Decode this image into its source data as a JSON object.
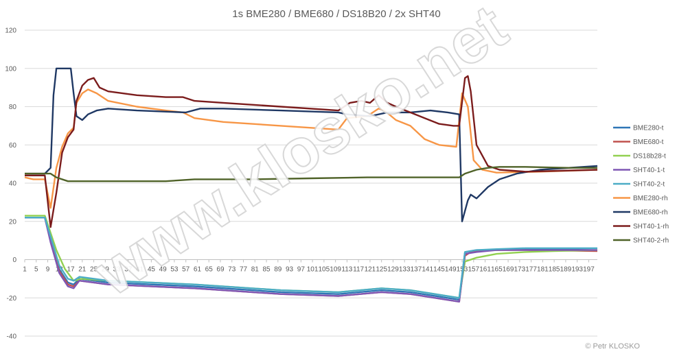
{
  "chart_data": {
    "type": "line",
    "title": "1s BME280 / BME680 / DS18B20 / 2x SHT40",
    "xlabel": "",
    "ylabel": "",
    "x_range": [
      1,
      200
    ],
    "x_tick_labels": [
      "1",
      "5",
      "9",
      "13",
      "17",
      "21",
      "25",
      "29",
      "33",
      "37",
      "41",
      "45",
      "49",
      "53",
      "57",
      "61",
      "65",
      "69",
      "73",
      "77",
      "81",
      "85",
      "89",
      "93",
      "97",
      "101",
      "105",
      "109",
      "113",
      "117",
      "121",
      "125",
      "129",
      "133",
      "137",
      "141",
      "145",
      "149",
      "153",
      "157",
      "161",
      "165",
      "169",
      "173",
      "177",
      "181",
      "185",
      "189",
      "193",
      "197"
    ],
    "y_ticks": [
      "-40",
      "-20",
      "0",
      "20",
      "40",
      "60",
      "80",
      "100",
      "120"
    ],
    "ylim": [
      -40,
      120
    ],
    "grid": true,
    "legend_position": "right",
    "series": [
      {
        "name": "BME280-t",
        "color": "#2e75b6",
        "points": [
          [
            1,
            22
          ],
          [
            8,
            22
          ],
          [
            10,
            10
          ],
          [
            13,
            -5
          ],
          [
            16,
            -12
          ],
          [
            18,
            -13
          ],
          [
            20,
            -10
          ],
          [
            30,
            -12
          ],
          [
            60,
            -14
          ],
          [
            90,
            -17
          ],
          [
            110,
            -18
          ],
          [
            125,
            -16
          ],
          [
            135,
            -17
          ],
          [
            152,
            -21
          ],
          [
            154,
            4
          ],
          [
            158,
            5
          ],
          [
            165,
            5
          ],
          [
            175,
            5.5
          ],
          [
            200,
            5
          ]
        ]
      },
      {
        "name": "BME680-t",
        "color": "#c0504d",
        "points": [
          [
            1,
            22
          ],
          [
            8,
            22
          ],
          [
            10,
            10
          ],
          [
            13,
            -6
          ],
          [
            16,
            -13
          ],
          [
            18,
            -14
          ],
          [
            20,
            -11
          ],
          [
            30,
            -13
          ],
          [
            60,
            -15
          ],
          [
            90,
            -18
          ],
          [
            110,
            -19
          ],
          [
            125,
            -17
          ],
          [
            135,
            -18
          ],
          [
            152,
            -22
          ],
          [
            154,
            2
          ],
          [
            156,
            4
          ],
          [
            162,
            5
          ],
          [
            175,
            5
          ],
          [
            200,
            4.5
          ]
        ]
      },
      {
        "name": "DS18b28-t",
        "color": "#92d050",
        "points": [
          [
            1,
            23
          ],
          [
            8,
            23
          ],
          [
            10,
            14
          ],
          [
            12,
            5
          ],
          [
            15,
            -5
          ],
          [
            18,
            -11
          ],
          [
            21,
            -10
          ],
          [
            30,
            -11
          ],
          [
            60,
            -13
          ],
          [
            90,
            -16
          ],
          [
            110,
            -17
          ],
          [
            125,
            -15
          ],
          [
            135,
            -16
          ],
          [
            152,
            -20
          ],
          [
            154,
            -1
          ],
          [
            158,
            1
          ],
          [
            165,
            3
          ],
          [
            175,
            4
          ],
          [
            185,
            4.5
          ],
          [
            200,
            5
          ]
        ]
      },
      {
        "name": "SHT40-1-t",
        "color": "#7f57b4",
        "points": [
          [
            1,
            22
          ],
          [
            8,
            22
          ],
          [
            10,
            9
          ],
          [
            13,
            -7
          ],
          [
            16,
            -14
          ],
          [
            18,
            -15
          ],
          [
            20,
            -11
          ],
          [
            30,
            -13
          ],
          [
            60,
            -15
          ],
          [
            90,
            -18
          ],
          [
            110,
            -19
          ],
          [
            125,
            -17
          ],
          [
            135,
            -18
          ],
          [
            152,
            -22
          ],
          [
            154,
            3
          ],
          [
            158,
            4
          ],
          [
            165,
            5
          ],
          [
            175,
            5
          ],
          [
            200,
            5
          ]
        ]
      },
      {
        "name": "SHT40-2-t",
        "color": "#4bacc6",
        "points": [
          [
            1,
            22
          ],
          [
            8,
            22
          ],
          [
            10,
            12
          ],
          [
            13,
            -3
          ],
          [
            16,
            -10
          ],
          [
            18,
            -11
          ],
          [
            20,
            -9
          ],
          [
            30,
            -11
          ],
          [
            60,
            -13
          ],
          [
            90,
            -16
          ],
          [
            110,
            -17
          ],
          [
            125,
            -15
          ],
          [
            135,
            -16
          ],
          [
            152,
            -20
          ],
          [
            154,
            4
          ],
          [
            158,
            5
          ],
          [
            165,
            5.5
          ],
          [
            175,
            6
          ],
          [
            200,
            6
          ]
        ]
      },
      {
        "name": "BME280-rh",
        "color": "#f79646",
        "points": [
          [
            1,
            43
          ],
          [
            4,
            42
          ],
          [
            8,
            42
          ],
          [
            10,
            27
          ],
          [
            12,
            48
          ],
          [
            14,
            59
          ],
          [
            16,
            66
          ],
          [
            18,
            69
          ],
          [
            19,
            82
          ],
          [
            21,
            87
          ],
          [
            23,
            89
          ],
          [
            26,
            87
          ],
          [
            30,
            83
          ],
          [
            40,
            80
          ],
          [
            50,
            78
          ],
          [
            56,
            77
          ],
          [
            60,
            74
          ],
          [
            70,
            72
          ],
          [
            90,
            70
          ],
          [
            110,
            68
          ],
          [
            113,
            74
          ],
          [
            120,
            75
          ],
          [
            124,
            79
          ],
          [
            126,
            78
          ],
          [
            130,
            73
          ],
          [
            135,
            70
          ],
          [
            140,
            63
          ],
          [
            145,
            60
          ],
          [
            151,
            59
          ],
          [
            153,
            87
          ],
          [
            155,
            80
          ],
          [
            157,
            52
          ],
          [
            160,
            47
          ],
          [
            165,
            45.5
          ],
          [
            180,
            46
          ],
          [
            200,
            47
          ]
        ]
      },
      {
        "name": "BME680-rh",
        "color": "#1f3864",
        "points": [
          [
            1,
            45
          ],
          [
            8,
            45
          ],
          [
            10,
            48
          ],
          [
            11,
            86
          ],
          [
            12,
            100
          ],
          [
            17,
            100
          ],
          [
            18,
            87
          ],
          [
            19,
            75
          ],
          [
            21,
            73
          ],
          [
            23,
            76
          ],
          [
            26,
            78
          ],
          [
            30,
            79
          ],
          [
            40,
            78
          ],
          [
            57,
            77
          ],
          [
            62,
            79
          ],
          [
            70,
            79
          ],
          [
            90,
            78
          ],
          [
            110,
            77
          ],
          [
            113,
            76
          ],
          [
            121,
            75
          ],
          [
            127,
            77
          ],
          [
            135,
            77
          ],
          [
            142,
            78
          ],
          [
            148,
            77
          ],
          [
            152,
            76
          ],
          [
            153,
            20
          ],
          [
            155,
            31
          ],
          [
            156,
            34
          ],
          [
            158,
            32
          ],
          [
            162,
            38
          ],
          [
            166,
            42
          ],
          [
            172,
            45
          ],
          [
            180,
            47
          ],
          [
            200,
            49
          ]
        ]
      },
      {
        "name": "SHT40-1-rh",
        "color": "#7b1c1c",
        "points": [
          [
            1,
            44
          ],
          [
            8,
            44
          ],
          [
            10,
            17
          ],
          [
            12,
            35
          ],
          [
            14,
            56
          ],
          [
            16,
            64
          ],
          [
            18,
            68
          ],
          [
            19,
            83
          ],
          [
            21,
            91
          ],
          [
            23,
            94
          ],
          [
            25,
            95
          ],
          [
            27,
            90
          ],
          [
            30,
            88
          ],
          [
            40,
            86
          ],
          [
            50,
            85
          ],
          [
            56,
            85
          ],
          [
            60,
            83
          ],
          [
            70,
            82
          ],
          [
            90,
            80
          ],
          [
            110,
            78
          ],
          [
            114,
            82
          ],
          [
            118,
            83
          ],
          [
            121,
            82
          ],
          [
            124,
            86
          ],
          [
            127,
            82
          ],
          [
            130,
            80
          ],
          [
            135,
            77
          ],
          [
            140,
            74
          ],
          [
            145,
            71
          ],
          [
            150,
            70
          ],
          [
            152,
            70
          ],
          [
            154,
            95
          ],
          [
            155,
            96
          ],
          [
            156,
            88
          ],
          [
            158,
            60
          ],
          [
            162,
            49
          ],
          [
            166,
            47
          ],
          [
            175,
            46
          ],
          [
            200,
            47
          ]
        ]
      },
      {
        "name": "SHT40-2-rh",
        "color": "#4f6228",
        "points": [
          [
            1,
            45
          ],
          [
            8,
            45
          ],
          [
            10,
            45
          ],
          [
            12,
            43
          ],
          [
            16,
            41
          ],
          [
            30,
            41
          ],
          [
            50,
            41
          ],
          [
            60,
            42
          ],
          [
            80,
            42
          ],
          [
            100,
            42.5
          ],
          [
            120,
            43
          ],
          [
            140,
            43
          ],
          [
            152,
            43
          ],
          [
            154,
            45
          ],
          [
            158,
            47
          ],
          [
            162,
            48
          ],
          [
            166,
            48.5
          ],
          [
            175,
            48.5
          ],
          [
            190,
            48
          ],
          [
            200,
            48
          ]
        ]
      }
    ]
  },
  "watermark": "www.klosko.net",
  "copyright": "© Petr KLOSKO"
}
